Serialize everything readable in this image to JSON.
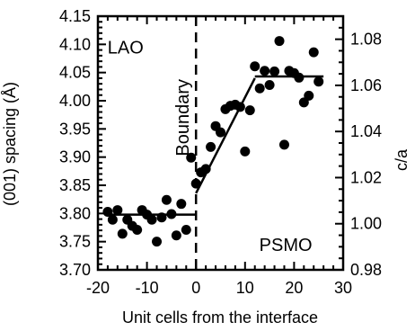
{
  "chart_data": {
    "type": "scatter",
    "title": "",
    "xlabel": "Unit cells from the interface",
    "ylabel": "(001) spacing (Å)",
    "y2label": "c/a",
    "xlim": [
      -20,
      30
    ],
    "ylim": [
      3.7,
      4.15
    ],
    "y2lim": [
      0.98,
      1.09
    ],
    "xticks": [
      -20,
      -10,
      0,
      10,
      20,
      30
    ],
    "xtick_labels": [
      "-20",
      "-10",
      "0",
      "10",
      "20",
      "30"
    ],
    "yticks": [
      3.7,
      3.75,
      3.8,
      3.85,
      3.9,
      3.95,
      4.0,
      4.05,
      4.1,
      4.15
    ],
    "ytick_labels": [
      "3.70",
      "3.75",
      "3.80",
      "3.85",
      "3.90",
      "3.95",
      "4.00",
      "4.05",
      "4.10",
      "4.15"
    ],
    "y2ticks": [
      0.98,
      1.0,
      1.02,
      1.04,
      1.06,
      1.08
    ],
    "y2tick_labels": [
      "0.98",
      "1.00",
      "1.02",
      "1.04",
      "1.06",
      "1.08"
    ],
    "grid": false,
    "annotations": [
      {
        "text": "LAO",
        "x": -14,
        "y": 4.095
      },
      {
        "text": "PSMO",
        "x": 19.5,
        "y": 3.745
      },
      {
        "text": "Boundary",
        "x": -1.5,
        "y": 3.97,
        "rotation": -90
      }
    ],
    "boundary_x": 0,
    "series": [
      {
        "points": [
          {
            "x": -18,
            "y": 3.803
          },
          {
            "x": -17,
            "y": 3.789
          },
          {
            "x": -16,
            "y": 3.806
          },
          {
            "x": -15,
            "y": 3.764
          },
          {
            "x": -14,
            "y": 3.789
          },
          {
            "x": -13,
            "y": 3.778
          },
          {
            "x": -12,
            "y": 3.771
          },
          {
            "x": -11,
            "y": 3.806
          },
          {
            "x": -10,
            "y": 3.798
          },
          {
            "x": -9,
            "y": 3.789
          },
          {
            "x": -8,
            "y": 3.75
          },
          {
            "x": -7,
            "y": 3.793
          },
          {
            "x": -6,
            "y": 3.824
          },
          {
            "x": -5,
            "y": 3.799
          },
          {
            "x": -4,
            "y": 3.761
          },
          {
            "x": -3,
            "y": 3.817
          },
          {
            "x": -2,
            "y": 3.771
          },
          {
            "x": -1,
            "y": 3.899
          },
          {
            "x": 0,
            "y": 3.853
          },
          {
            "x": 1,
            "y": 3.873
          },
          {
            "x": 2,
            "y": 3.879
          },
          {
            "x": 3,
            "y": 3.918
          },
          {
            "x": 4,
            "y": 3.955
          },
          {
            "x": 5,
            "y": 3.944
          },
          {
            "x": 6,
            "y": 3.985
          },
          {
            "x": 7,
            "y": 3.991
          },
          {
            "x": 8,
            "y": 3.993
          },
          {
            "x": 9,
            "y": 3.989
          },
          {
            "x": 10,
            "y": 3.91
          },
          {
            "x": 11,
            "y": 3.983
          },
          {
            "x": 12,
            "y": 4.061
          },
          {
            "x": 13,
            "y": 4.022
          },
          {
            "x": 14,
            "y": 4.053
          },
          {
            "x": 15,
            "y": 4.028
          },
          {
            "x": 16,
            "y": 4.052
          },
          {
            "x": 17,
            "y": 4.106
          },
          {
            "x": 18,
            "y": 3.922
          },
          {
            "x": 19,
            "y": 4.053
          },
          {
            "x": 20,
            "y": 4.049
          },
          {
            "x": 21,
            "y": 4.041
          },
          {
            "x": 22,
            "y": 3.997
          },
          {
            "x": 23,
            "y": 4.009
          },
          {
            "x": 24,
            "y": 4.086
          },
          {
            "x": 25,
            "y": 4.034
          }
        ]
      }
    ],
    "fit_lines": [
      {
        "x": [
          -18,
          0
        ],
        "y": [
          3.798,
          3.798
        ]
      },
      {
        "x": [
          0,
          12
        ],
        "y": [
          3.836,
          4.04
        ]
      },
      {
        "x": [
          12,
          26
        ],
        "y": [
          4.043,
          4.043
        ]
      }
    ],
    "colors": {
      "marker": "#000000",
      "line": "#000000"
    }
  }
}
